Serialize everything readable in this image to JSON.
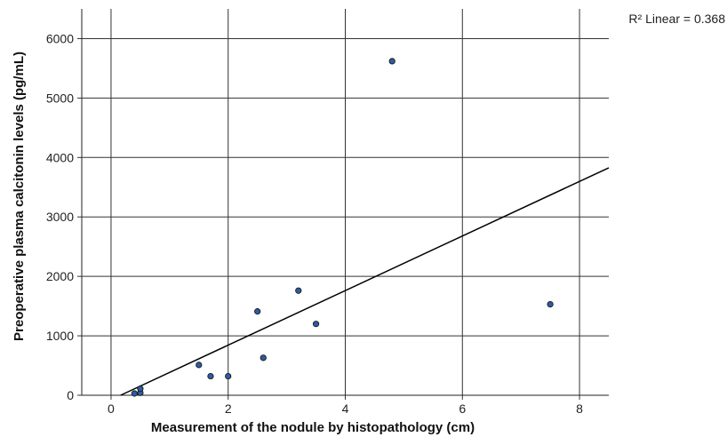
{
  "chart_data": {
    "type": "scatter",
    "title": "",
    "xlabel": "Measurement of the nodule by histopathology (cm)",
    "ylabel": "Preoperative plasma calcitonin levels (pg/mL)",
    "xlim": [
      -0.5,
      8.5
    ],
    "ylim": [
      0,
      6500
    ],
    "x_ticks": [
      0,
      2,
      4,
      6,
      8
    ],
    "y_ticks": [
      0,
      1000,
      2000,
      3000,
      4000,
      5000,
      6000
    ],
    "grid": true,
    "points": [
      {
        "x": 0.4,
        "y": 30
      },
      {
        "x": 0.5,
        "y": 40
      },
      {
        "x": 0.5,
        "y": 110
      },
      {
        "x": 1.5,
        "y": 510
      },
      {
        "x": 1.7,
        "y": 320
      },
      {
        "x": 2.0,
        "y": 320
      },
      {
        "x": 2.5,
        "y": 1410
      },
      {
        "x": 2.6,
        "y": 630
      },
      {
        "x": 3.2,
        "y": 1760
      },
      {
        "x": 3.5,
        "y": 1200
      },
      {
        "x": 4.8,
        "y": 5620
      },
      {
        "x": 7.5,
        "y": 1530
      }
    ],
    "fit_line": {
      "label": "R² Linear = 0.368",
      "intercept": -75,
      "slope": 459
    },
    "colors": {
      "marker_fill": "#2e5b9e",
      "marker_stroke": "#111111",
      "line": "#000000",
      "grid": "#333333"
    }
  }
}
